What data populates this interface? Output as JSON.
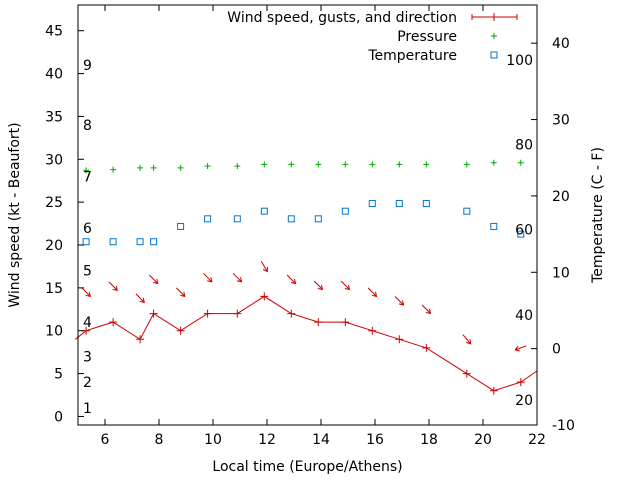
{
  "chart_data": {
    "type": "line",
    "title": "",
    "xlabel": "Local time (Europe/Athens)",
    "ylabel_left": "Wind speed (kt - Beaufort)",
    "ylabel_right": "Temperature (C - F)",
    "xlim": [
      5,
      22
    ],
    "ylim_left": [
      -1,
      48
    ],
    "ylim_right": [
      -10,
      45
    ],
    "x_ticks": [
      6,
      8,
      10,
      12,
      14,
      16,
      18,
      20,
      22
    ],
    "y_left_ticks": [
      0,
      5,
      10,
      15,
      20,
      25,
      30,
      35,
      40,
      45
    ],
    "y_right_ticks": [
      -10,
      0,
      10,
      20,
      30,
      40
    ],
    "beaufort_labels": [
      {
        "label": "1",
        "wind": 1
      },
      {
        "label": "2",
        "wind": 4
      },
      {
        "label": "3",
        "wind": 7
      },
      {
        "label": "4",
        "wind": 11
      },
      {
        "label": "5",
        "wind": 17
      },
      {
        "label": "6",
        "wind": 22
      },
      {
        "label": "7",
        "wind": 28
      },
      {
        "label": "8",
        "wind": 34
      },
      {
        "label": "9",
        "wind": 41
      }
    ],
    "fahrenheit_labels": [
      {
        "label": "20",
        "temp": -6.7
      },
      {
        "label": "40",
        "temp": 4.4
      },
      {
        "label": "60",
        "temp": 15.6
      },
      {
        "label": "80",
        "temp": 26.7
      },
      {
        "label": "100",
        "temp": 37.8
      }
    ],
    "grid": false,
    "legend_position": "top-right",
    "series": [
      {
        "name": "Wind speed, gusts, and direction",
        "color": "#cc0000",
        "x": [
          4.9,
          5.3,
          6.3,
          7.3,
          7.8,
          8.8,
          9.8,
          10.9,
          11.9,
          12.9,
          13.9,
          14.9,
          15.9,
          16.9,
          17.9,
          19.4,
          20.4,
          21.4,
          22.0
        ],
        "values": [
          9,
          10,
          11,
          9,
          12,
          10,
          12,
          12,
          14,
          12,
          11,
          11,
          10,
          9,
          8,
          5,
          3,
          4,
          5.3
        ]
      },
      {
        "name": "Pressure",
        "color": "#00aa00",
        "x": [
          5.3,
          6.3,
          7.3,
          7.8,
          8.8,
          9.8,
          10.9,
          11.9,
          12.9,
          13.9,
          14.9,
          15.9,
          16.9,
          17.9,
          19.4,
          20.4,
          21.4
        ],
        "values": [
          28.7,
          28.8,
          29,
          29,
          29,
          29.2,
          29.2,
          29.4,
          29.4,
          29.4,
          29.4,
          29.4,
          29.4,
          29.4,
          29.4,
          29.6,
          29.6
        ]
      },
      {
        "name": "Temperature",
        "color": "#0077cc",
        "x": [
          5.3,
          6.3,
          7.3,
          7.8,
          8.8,
          9.8,
          10.9,
          11.9,
          12.9,
          13.9,
          14.9,
          15.9,
          16.9,
          17.9,
          19.4,
          20.4,
          21.4
        ],
        "values": [
          14,
          14,
          14,
          14,
          16,
          17,
          17,
          18,
          17,
          17,
          18,
          19,
          19,
          19,
          18,
          16,
          15
        ]
      }
    ],
    "wind_direction_arrows": {
      "color": "#cc0000",
      "x": [
        5.3,
        6.3,
        7.3,
        7.8,
        8.8,
        9.8,
        10.9,
        11.9,
        12.9,
        13.9,
        14.9,
        15.9,
        16.9,
        17.9,
        19.4,
        21.4
      ],
      "y": [
        14.5,
        15.2,
        13.8,
        16,
        14.5,
        16.2,
        16.2,
        17.5,
        16,
        15.3,
        15.3,
        14.5,
        13.5,
        12.5,
        9,
        8
      ],
      "direction_to_deg": [
        135,
        135,
        135,
        135,
        135,
        135,
        135,
        150,
        135,
        135,
        135,
        135,
        135,
        135,
        140,
        250
      ]
    }
  }
}
